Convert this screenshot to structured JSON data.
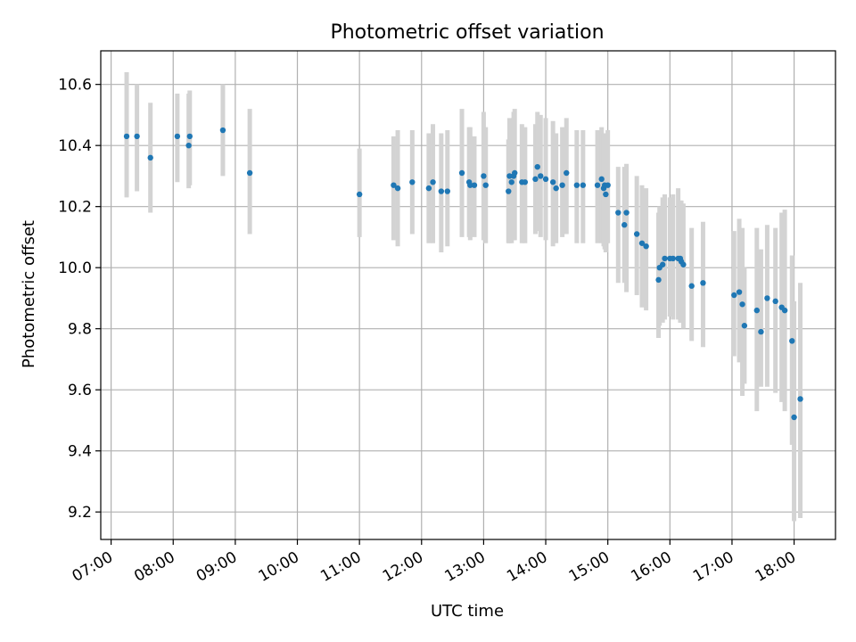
{
  "chart_data": {
    "type": "scatter",
    "title": "Photometric offset variation",
    "xlabel": "UTC time",
    "ylabel": "Photometric offset",
    "xlim": [
      "06:50",
      "18:40"
    ],
    "ylim": [
      9.11,
      10.71
    ],
    "x_ticks": [
      "07:00",
      "08:00",
      "09:00",
      "10:00",
      "11:00",
      "12:00",
      "13:00",
      "14:00",
      "15:00",
      "16:00",
      "17:00",
      "18:00"
    ],
    "y_ticks": [
      9.2,
      9.4,
      9.6,
      9.8,
      10.0,
      10.2,
      10.4,
      10.6
    ],
    "y_tick_labels": [
      "9.2",
      "9.4",
      "9.6",
      "9.8",
      "10.0",
      "10.2",
      "10.4",
      "10.6"
    ],
    "grid": true,
    "colors": {
      "point": "#1f77b4",
      "errorbar": "#d3d3d3",
      "grid": "#b0b0b0"
    },
    "series": [
      {
        "x": [
          "07:15",
          "07:25",
          "07:38",
          "08:04",
          "08:15",
          "08:16",
          "08:48",
          "09:14",
          "11:00",
          "11:33",
          "11:37",
          "11:51",
          "12:07",
          "12:11",
          "12:19",
          "12:25",
          "12:39",
          "12:46",
          "12:47",
          "12:51",
          "13:00",
          "13:02",
          "13:24",
          "13:25",
          "13:27",
          "13:29",
          "13:30",
          "13:37",
          "13:40",
          "13:50",
          "13:52",
          "13:55",
          "14:00",
          "14:07",
          "14:10",
          "14:16",
          "14:20",
          "14:30",
          "14:36",
          "14:50",
          "14:54",
          "14:56",
          "14:57",
          "14:58",
          "15:00",
          "15:10",
          "15:16",
          "15:18",
          "15:28",
          "15:33",
          "15:37",
          "15:49",
          "15:50",
          "15:53",
          "15:55",
          "16:00",
          "16:03",
          "16:08",
          "16:10",
          "16:11",
          "16:13",
          "16:21",
          "16:32",
          "17:02",
          "17:07",
          "17:10",
          "17:12",
          "17:24",
          "17:28",
          "17:34",
          "17:42",
          "17:48",
          "17:51",
          "17:58",
          "18:00",
          "18:06"
        ],
        "y": [
          10.43,
          10.43,
          10.36,
          10.43,
          10.4,
          10.43,
          10.45,
          10.31,
          10.24,
          10.27,
          10.26,
          10.28,
          10.26,
          10.28,
          10.25,
          10.25,
          10.31,
          10.28,
          10.27,
          10.27,
          10.3,
          10.27,
          10.25,
          10.3,
          10.28,
          10.3,
          10.31,
          10.28,
          10.28,
          10.29,
          10.33,
          10.3,
          10.29,
          10.28,
          10.26,
          10.27,
          10.31,
          10.27,
          10.27,
          10.27,
          10.29,
          10.26,
          10.27,
          10.24,
          10.27,
          10.18,
          10.14,
          10.18,
          10.11,
          10.08,
          10.07,
          9.96,
          10.0,
          10.01,
          10.03,
          10.03,
          10.03,
          10.03,
          10.03,
          10.02,
          10.01,
          9.94,
          9.95,
          9.91,
          9.92,
          9.88,
          9.81,
          9.86,
          9.79,
          9.9,
          9.89,
          9.87,
          9.86,
          9.76,
          9.51,
          9.57
        ],
        "err_low": [
          10.23,
          10.25,
          10.18,
          10.28,
          10.26,
          10.27,
          10.3,
          10.11,
          10.1,
          10.09,
          10.07,
          10.11,
          10.08,
          10.08,
          10.05,
          10.07,
          10.1,
          10.1,
          10.09,
          10.1,
          10.09,
          10.08,
          10.08,
          10.08,
          10.08,
          10.09,
          10.09,
          10.08,
          10.08,
          10.11,
          10.12,
          10.1,
          10.09,
          10.07,
          10.08,
          10.1,
          10.11,
          10.08,
          10.08,
          10.08,
          10.08,
          10.07,
          10.06,
          10.05,
          10.08,
          9.95,
          9.95,
          9.92,
          9.91,
          9.87,
          9.86,
          9.77,
          9.81,
          9.82,
          9.83,
          9.84,
          9.83,
          9.83,
          9.82,
          9.82,
          9.8,
          9.76,
          9.74,
          9.71,
          9.69,
          9.58,
          9.62,
          9.53,
          9.61,
          9.61,
          9.59,
          9.56,
          9.53,
          9.42,
          9.17,
          9.18
        ],
        "err_high": [
          10.64,
          10.6,
          10.54,
          10.57,
          10.57,
          10.58,
          10.6,
          10.52,
          10.39,
          10.43,
          10.45,
          10.45,
          10.44,
          10.47,
          10.44,
          10.45,
          10.52,
          10.46,
          10.46,
          10.43,
          10.51,
          10.46,
          10.42,
          10.49,
          10.48,
          10.51,
          10.52,
          10.47,
          10.46,
          10.47,
          10.51,
          10.5,
          10.49,
          10.48,
          10.44,
          10.46,
          10.49,
          10.45,
          10.45,
          10.45,
          10.46,
          10.44,
          10.44,
          10.41,
          10.45,
          10.33,
          10.33,
          10.34,
          10.3,
          10.27,
          10.26,
          10.18,
          10.2,
          10.23,
          10.24,
          10.23,
          10.24,
          10.26,
          10.22,
          10.22,
          10.21,
          10.13,
          10.15,
          10.12,
          10.16,
          10.13,
          10.0,
          10.13,
          10.06,
          10.14,
          10.13,
          10.18,
          10.19,
          10.04,
          9.89,
          9.95
        ]
      }
    ]
  }
}
